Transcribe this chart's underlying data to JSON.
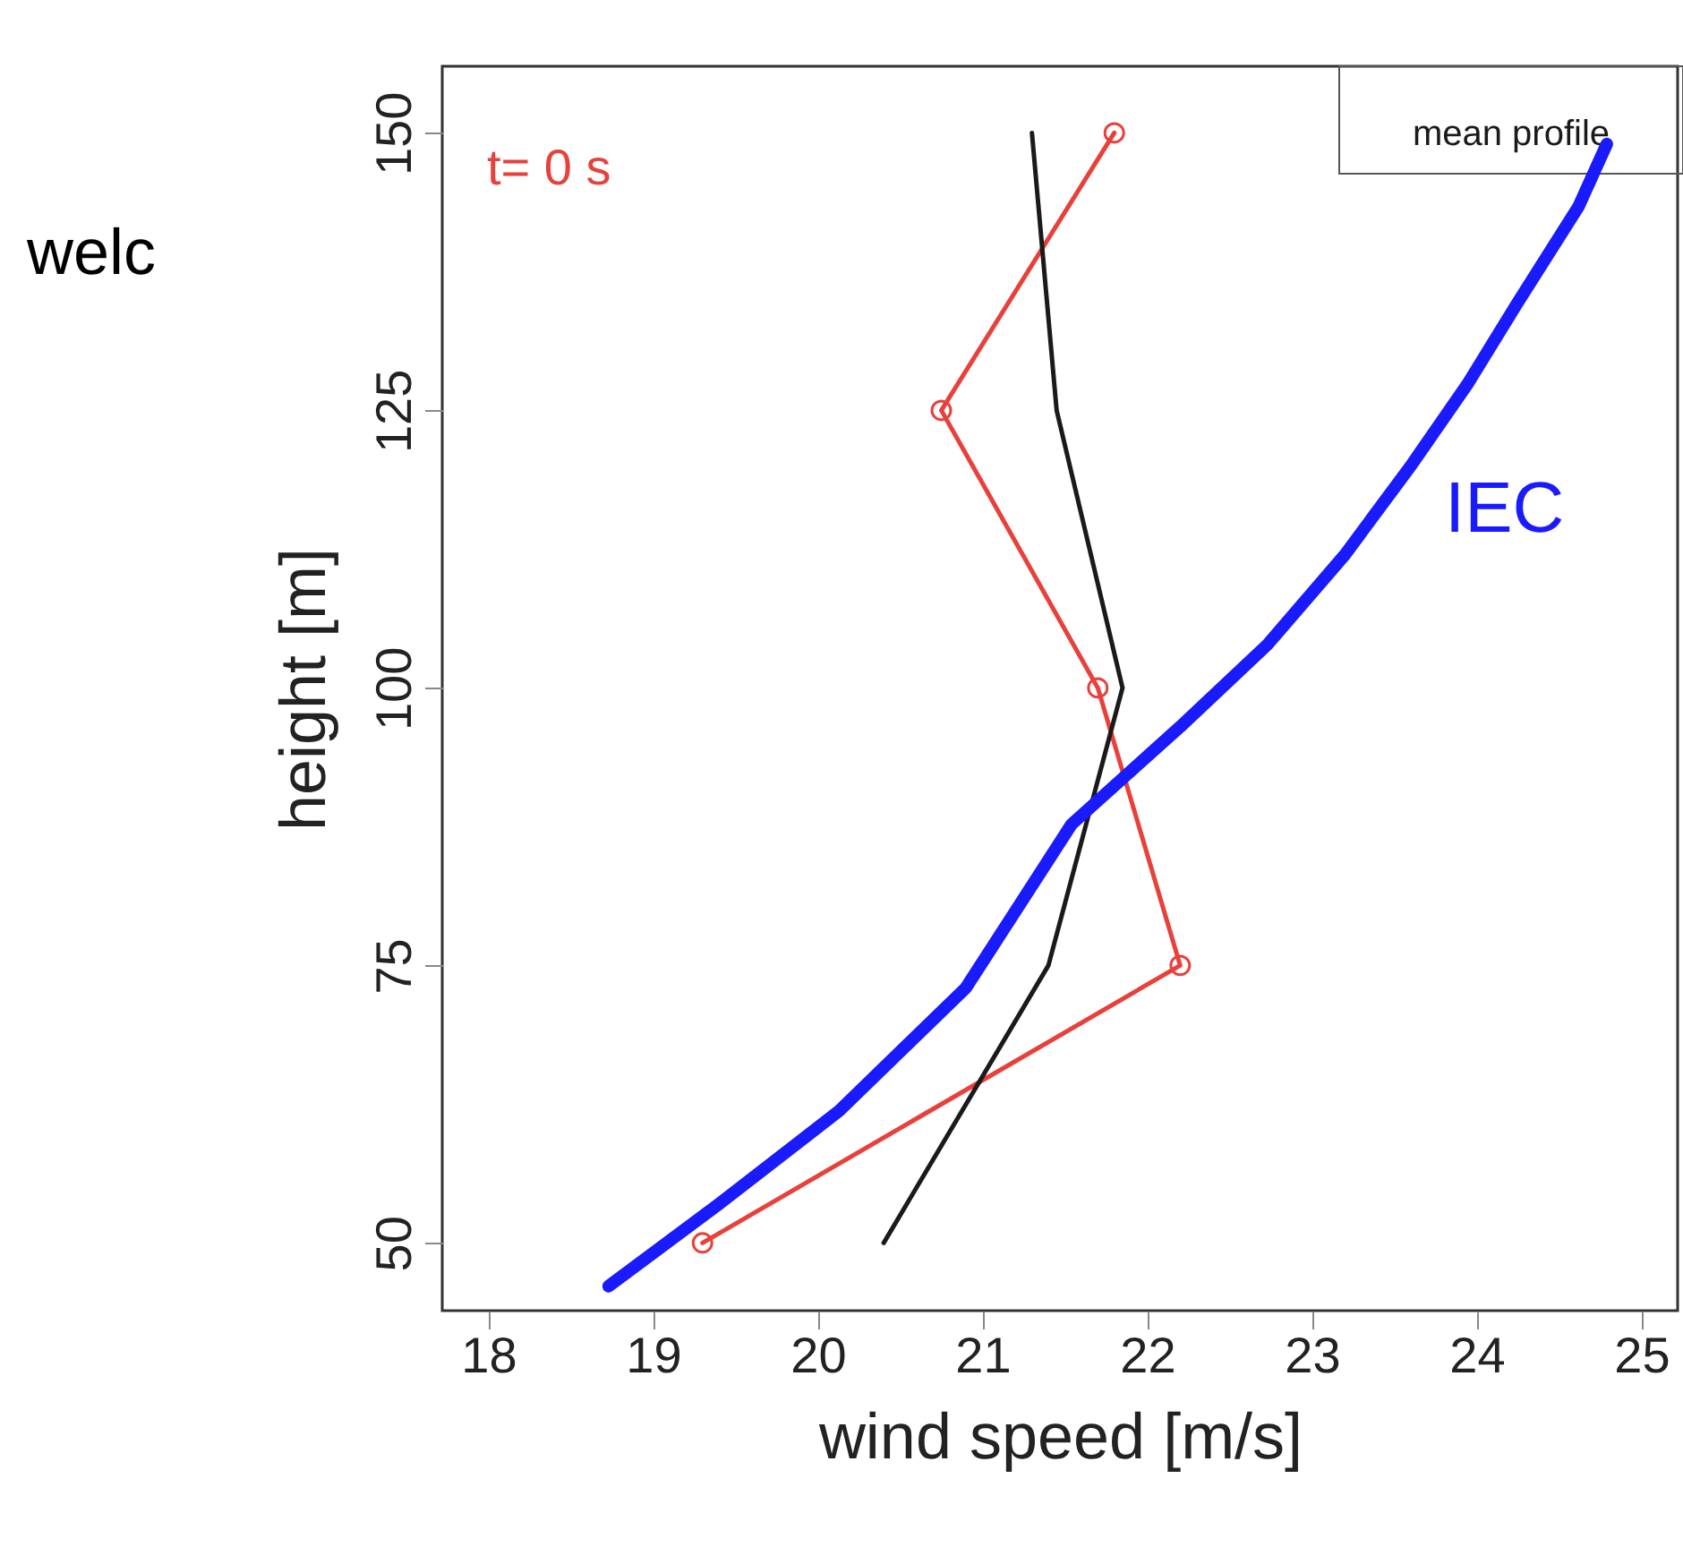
{
  "chart_data": {
    "type": "line",
    "xlabel": "wind speed [m/s]",
    "ylabel": "height [m]",
    "xlim": [
      17.72,
      25.22
    ],
    "xticks": [
      18,
      19,
      20,
      21,
      22,
      23,
      24,
      25
    ],
    "ylim": [
      43.9,
      156
    ],
    "yticks": [
      50,
      75,
      100,
      125,
      150
    ],
    "grid": false,
    "legend": "top right",
    "annotations": [
      "welc"
    ],
    "series": [
      {
        "name": "t= 0 s",
        "color": "#e8403a",
        "marker": "circle",
        "x": [
          21.8,
          20.75,
          21.7,
          22.2,
          19.3
        ],
        "values": [
          150,
          125,
          100,
          75,
          50
        ]
      },
      {
        "name": "mean profile",
        "color": "#1a1a1a",
        "marker": "none",
        "x": [
          21.3,
          21.45,
          21.85,
          21.4,
          20.4
        ],
        "values": [
          150,
          125,
          100,
          75,
          50
        ]
      },
      {
        "name": "IEC",
        "color": "#1a1aff",
        "marker": "none",
        "x": [
          18.73,
          19.4,
          20.13,
          20.9,
          21.54,
          22.2,
          22.73,
          23.2,
          23.6,
          23.95,
          24.24,
          24.62,
          24.79
        ],
        "values": [
          46.1,
          53.5,
          61.9,
          73,
          87.7,
          96.5,
          103.9,
          112,
          120,
          127.5,
          134.5,
          143.4,
          149
        ]
      }
    ]
  }
}
